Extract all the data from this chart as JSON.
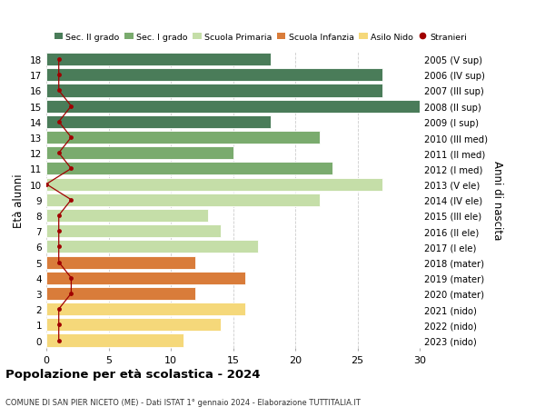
{
  "ages": [
    18,
    17,
    16,
    15,
    14,
    13,
    12,
    11,
    10,
    9,
    8,
    7,
    6,
    5,
    4,
    3,
    2,
    1,
    0
  ],
  "right_labels": [
    "2005 (V sup)",
    "2006 (IV sup)",
    "2007 (III sup)",
    "2008 (II sup)",
    "2009 (I sup)",
    "2010 (III med)",
    "2011 (II med)",
    "2012 (I med)",
    "2013 (V ele)",
    "2014 (IV ele)",
    "2015 (III ele)",
    "2016 (II ele)",
    "2017 (I ele)",
    "2018 (mater)",
    "2019 (mater)",
    "2020 (mater)",
    "2021 (nido)",
    "2022 (nido)",
    "2023 (nido)"
  ],
  "bar_values": [
    18,
    27,
    27,
    30,
    18,
    22,
    15,
    23,
    27,
    22,
    13,
    14,
    17,
    12,
    16,
    12,
    16,
    14,
    11
  ],
  "bar_colors": [
    "#4a7c59",
    "#4a7c59",
    "#4a7c59",
    "#4a7c59",
    "#4a7c59",
    "#7aab6e",
    "#7aab6e",
    "#7aab6e",
    "#c5dea8",
    "#c5dea8",
    "#c5dea8",
    "#c5dea8",
    "#c5dea8",
    "#d97c3a",
    "#d97c3a",
    "#d97c3a",
    "#f5d87a",
    "#f5d87a",
    "#f5d87a"
  ],
  "stranieri_values": [
    1,
    1,
    1,
    2,
    1,
    2,
    1,
    2,
    0,
    2,
    1,
    1,
    1,
    1,
    2,
    2,
    1,
    1,
    1
  ],
  "stranieri_color": "#a00000",
  "legend_items": [
    {
      "label": "Sec. II grado",
      "color": "#4a7c59"
    },
    {
      "label": "Sec. I grado",
      "color": "#7aab6e"
    },
    {
      "label": "Scuola Primaria",
      "color": "#c5dea8"
    },
    {
      "label": "Scuola Infanzia",
      "color": "#d97c3a"
    },
    {
      "label": "Asilo Nido",
      "color": "#f5d87a"
    },
    {
      "label": "Stranieri",
      "color": "#a00000"
    }
  ],
  "ylabel_left": "Età alunni",
  "ylabel_right": "Anni di nascita",
  "title": "Popolazione per età scolastica - 2024",
  "subtitle": "COMUNE DI SAN PIER NICETO (ME) - Dati ISTAT 1° gennaio 2024 - Elaborazione TUTTITALIA.IT",
  "xlim": [
    0,
    30
  ],
  "xticks": [
    0,
    5,
    10,
    15,
    20,
    25,
    30
  ],
  "background_color": "#ffffff",
  "grid_color": "#cccccc"
}
